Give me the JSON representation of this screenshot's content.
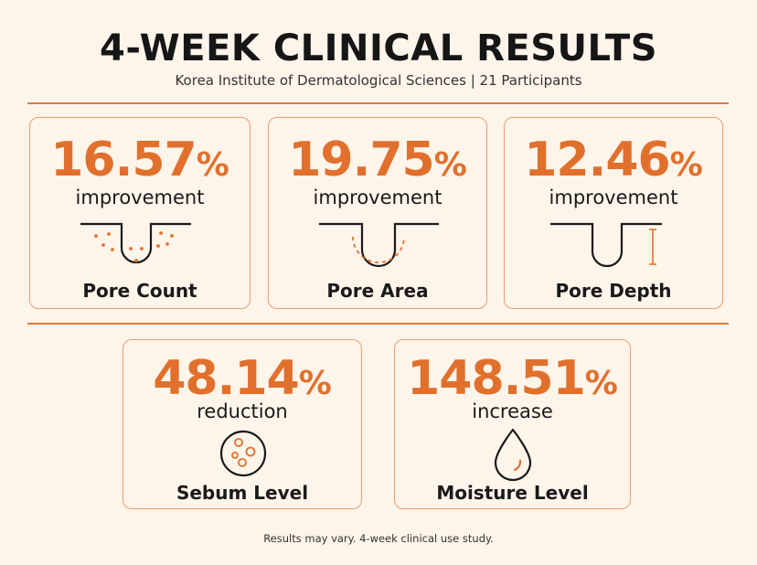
{
  "header": {
    "title": "4-WEEK CLINICAL RESULTS",
    "subtitle": "Korea Institute of Dermatological Sciences | 21 Participants"
  },
  "results": [
    {
      "value": "16.57",
      "unit": "%",
      "descriptor": "improvement",
      "label": "Pore Count",
      "icon": "pore-count-icon"
    },
    {
      "value": "19.75",
      "unit": "%",
      "descriptor": "improvement",
      "label": "Pore Area",
      "icon": "pore-area-icon"
    },
    {
      "value": "12.46",
      "unit": "%",
      "descriptor": "improvement",
      "label": "Pore Depth",
      "icon": "pore-depth-icon"
    },
    {
      "value": "48.14",
      "unit": "%",
      "descriptor": "reduction",
      "label": "Sebum Level",
      "icon": "sebum-icon"
    },
    {
      "value": "148.51",
      "unit": "%",
      "descriptor": "increase",
      "label": "Moisture Level",
      "icon": "water-drop-icon"
    }
  ],
  "footnote": "Results may vary. 4-week clinical use study.",
  "colors": {
    "accent": "#e1702c",
    "border": "#e3a270",
    "background": "#fdf4ea",
    "text": "#1a1a1a"
  }
}
